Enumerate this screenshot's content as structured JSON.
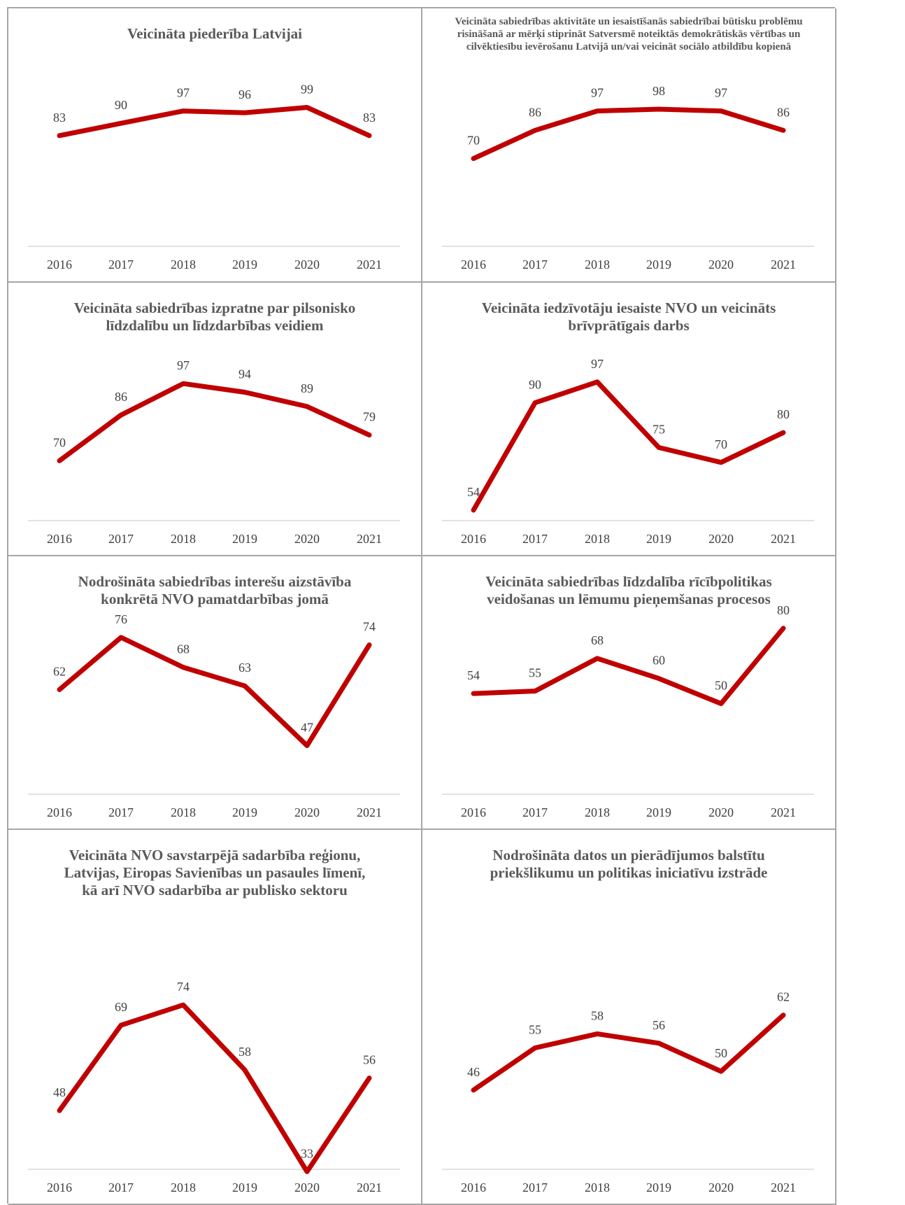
{
  "chart_data": [
    {
      "type": "line",
      "title": "Veicināta piederība Latvijai",
      "categories": [
        "2016",
        "2017",
        "2018",
        "2019",
        "2020",
        "2021"
      ],
      "values": [
        83,
        90,
        97,
        96,
        99,
        83
      ],
      "color": "#c00000"
    },
    {
      "type": "line",
      "title": "Veicināta sabiedrības aktivitāte un iesaistīšanās sabiedrībai būtisku problēmu risināšanā ar mērķi stiprināt Satversmē noteiktās demokrātiskās vērtības un cilvēktiesību ievērošanu Latvijā un/vai veicināt sociālo atbildību kopienā",
      "categories": [
        "2016",
        "2017",
        "2018",
        "2019",
        "2020",
        "2021"
      ],
      "values": [
        70,
        86,
        97,
        98,
        97,
        86
      ],
      "color": "#c00000"
    },
    {
      "type": "line",
      "title": "Veicināta sabiedrības izpratne par pilsonisko līdzdalību un līdzdarbības veidiem",
      "categories": [
        "2016",
        "2017",
        "2018",
        "2019",
        "2020",
        "2021"
      ],
      "values": [
        70,
        86,
        97,
        94,
        89,
        79
      ],
      "color": "#c00000"
    },
    {
      "type": "line",
      "title": "Veicināta iedzīvotāju iesaiste NVO un veicināts brīvprātīgais darbs",
      "categories": [
        "2016",
        "2017",
        "2018",
        "2019",
        "2020",
        "2021"
      ],
      "values": [
        54,
        90,
        97,
        75,
        70,
        80
      ],
      "color": "#c00000"
    },
    {
      "type": "line",
      "title": "Nodrošināta sabiedrības interešu aizstāvība konkrētā NVO pamatdarbības jomā",
      "categories": [
        "2016",
        "2017",
        "2018",
        "2019",
        "2020",
        "2021"
      ],
      "values": [
        62,
        76,
        68,
        63,
        47,
        74
      ],
      "color": "#c00000"
    },
    {
      "type": "line",
      "title": "Veicināta sabiedrības līdzdalība rīcībpolitikas veidošanas un lēmumu pieņemšanas procesos",
      "categories": [
        "2016",
        "2017",
        "2018",
        "2019",
        "2020",
        "2021"
      ],
      "values": [
        54,
        55,
        68,
        60,
        50,
        80
      ],
      "color": "#c00000"
    },
    {
      "type": "line",
      "title": "Veicināta NVO savstarpējā sadarbība reģionu, Latvijas, Eiropas Savienības un pasaules līmenī, kā arī NVO sadarbība ar publisko sektoru",
      "categories": [
        "2016",
        "2017",
        "2018",
        "2019",
        "2020",
        "2021"
      ],
      "values": [
        48,
        69,
        74,
        58,
        33,
        56
      ],
      "color": "#c00000"
    },
    {
      "type": "line",
      "title": "Nodrošināta datos un pierādījumos balstītu priekšlikumu un politikas iniciatīvu izstrāde",
      "categories": [
        "2016",
        "2017",
        "2018",
        "2019",
        "2020",
        "2021"
      ],
      "values": [
        46,
        55,
        58,
        56,
        50,
        62
      ],
      "color": "#c00000"
    }
  ]
}
